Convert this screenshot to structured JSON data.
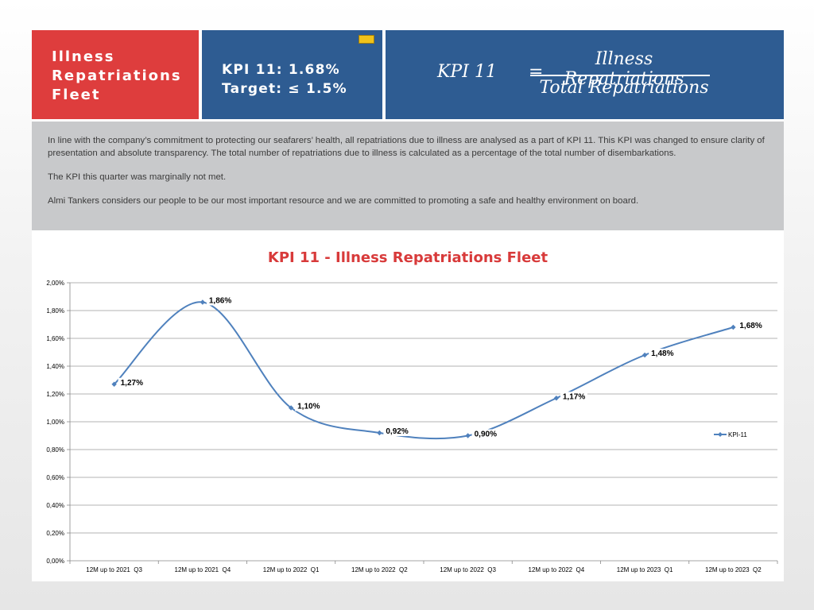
{
  "header": {
    "title_lines": [
      "Illness",
      "Repatriations",
      "Fleet"
    ],
    "kpi_line": "KPI 11: 1.68%",
    "target_line": "Target: ≤ 1.5%",
    "formula": {
      "lhs": "KPI  11",
      "eq": "=",
      "numerator": "Illness Repatriations",
      "denominator": "Total Repatriations"
    }
  },
  "description": [
    "In line with the company’s commitment to protecting our seafarers’ health, all repatriations due to illness are analysed as a part of KPI 11. This KPI was changed to ensure clarity of presentation and absolute transparency. The total number of repatriations due to illness is calculated as a percentage of the total number of disembarkations.",
    "The KPI this quarter was marginally not met.",
    "Almi Tankers considers our people to be our most important resource and we are committed to promoting a safe and healthy environment on board."
  ],
  "colors": {
    "red_box": "#de3d3d",
    "blue_box": "#2e5c92",
    "chart_title": "#d83a3a",
    "series": "#4f81bd"
  },
  "chart_data": {
    "type": "line",
    "title": "KPI 11 - Illness Repatriations Fleet",
    "categories": [
      "12M up to 2021  Q3",
      "12M up to 2021  Q4",
      "12M up to 2022  Q1",
      "12M up to 2022  Q2",
      "12M up to 2022  Q3",
      "12M up to 2022  Q4",
      "12M up to 2023  Q1",
      "12M up to 2023  Q2"
    ],
    "series": [
      {
        "name": "KPI-11",
        "values": [
          1.27,
          1.86,
          1.1,
          0.92,
          0.9,
          1.17,
          1.48,
          1.68
        ],
        "labels": [
          "1,27%",
          "1,86%",
          "1,10%",
          "0,92%",
          "0,90%",
          "1,17%",
          "1,48%",
          "1,68%"
        ]
      }
    ],
    "yticks": [
      "0,00%",
      "0,20%",
      "0,40%",
      "0,60%",
      "0,80%",
      "1,00%",
      "1,20%",
      "1,40%",
      "1,60%",
      "1,80%",
      "2,00%"
    ],
    "ylim": [
      0,
      2.0
    ],
    "ystep": 0.2,
    "smooth": true,
    "grid": true,
    "legend": "right"
  }
}
